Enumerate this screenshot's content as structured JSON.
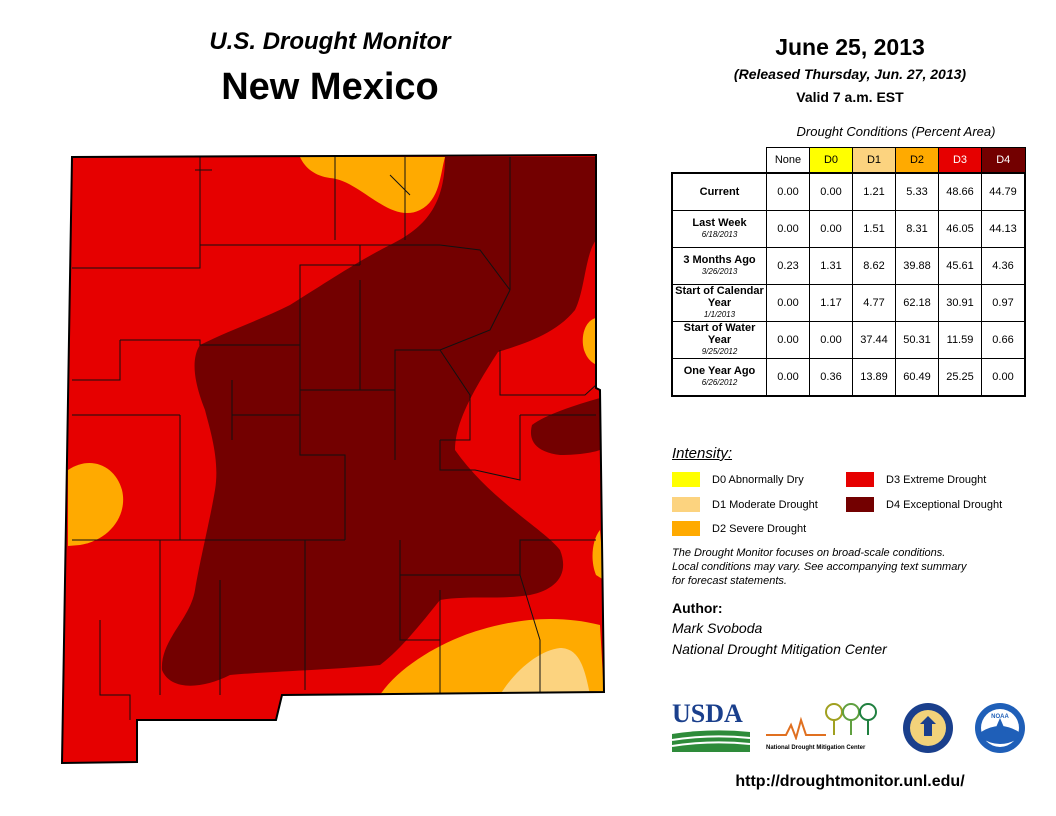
{
  "header": {
    "title": "U.S. Drought Monitor",
    "state": "New Mexico",
    "date": "June 25, 2013",
    "released": "(Released Thursday, Jun. 27, 2013)",
    "valid": "Valid 7 a.m. EST"
  },
  "table": {
    "caption": "Drought Conditions (Percent Area)",
    "columns": [
      "None",
      "D0",
      "D1",
      "D2",
      "D3",
      "D4"
    ],
    "column_colors": [
      "#ffffff",
      "#ffff00",
      "#fcd37f",
      "#ffaa00",
      "#e60000",
      "#730000"
    ],
    "rows": [
      {
        "label": "Current",
        "sub_label": "",
        "values": [
          "0.00",
          "0.00",
          "1.21",
          "5.33",
          "48.66",
          "44.79"
        ]
      },
      {
        "label": "Last Week",
        "sub_label": "6/18/2013",
        "values": [
          "0.00",
          "0.00",
          "1.51",
          "8.31",
          "46.05",
          "44.13"
        ]
      },
      {
        "label": "3 Months Ago",
        "sub_label": "3/26/2013",
        "values": [
          "0.23",
          "1.31",
          "8.62",
          "39.88",
          "45.61",
          "4.36"
        ]
      },
      {
        "label": "Start of Calendar Year",
        "sub_label": "1/1/2013",
        "values": [
          "0.00",
          "1.17",
          "4.77",
          "62.18",
          "30.91",
          "0.97"
        ]
      },
      {
        "label": "Start of Water Year",
        "sub_label": "9/25/2012",
        "values": [
          "0.00",
          "0.00",
          "37.44",
          "50.31",
          "11.59",
          "0.66"
        ]
      },
      {
        "label": "One Year Ago",
        "sub_label": "6/26/2012",
        "values": [
          "0.00",
          "0.36",
          "13.89",
          "60.49",
          "25.25",
          "0.00"
        ]
      }
    ]
  },
  "legend": {
    "title": "Intensity:",
    "items": [
      {
        "label": "D0 Abnormally Dry",
        "color": "#ffff00"
      },
      {
        "label": "D1 Moderate Drought",
        "color": "#fcd37f"
      },
      {
        "label": "D2 Severe Drought",
        "color": "#ffaa00"
      },
      {
        "label": "D3 Extreme Drought",
        "color": "#e60000"
      },
      {
        "label": "D4 Exceptional Drought",
        "color": "#730000"
      }
    ]
  },
  "note": {
    "line1": "The Drought Monitor focuses on broad-scale conditions.",
    "line2": "Local conditions may vary. See accompanying text summary",
    "line3": "for forecast statements."
  },
  "author": {
    "label": "Author:",
    "name": "Mark Svoboda",
    "org": "National Drought Mitigation Center"
  },
  "logos": {
    "usda": "USDA",
    "ndmc": "National Drought Mitigation Center",
    "noaa": "NOAA"
  },
  "url": "http://droughtmonitor.unl.edu/"
}
